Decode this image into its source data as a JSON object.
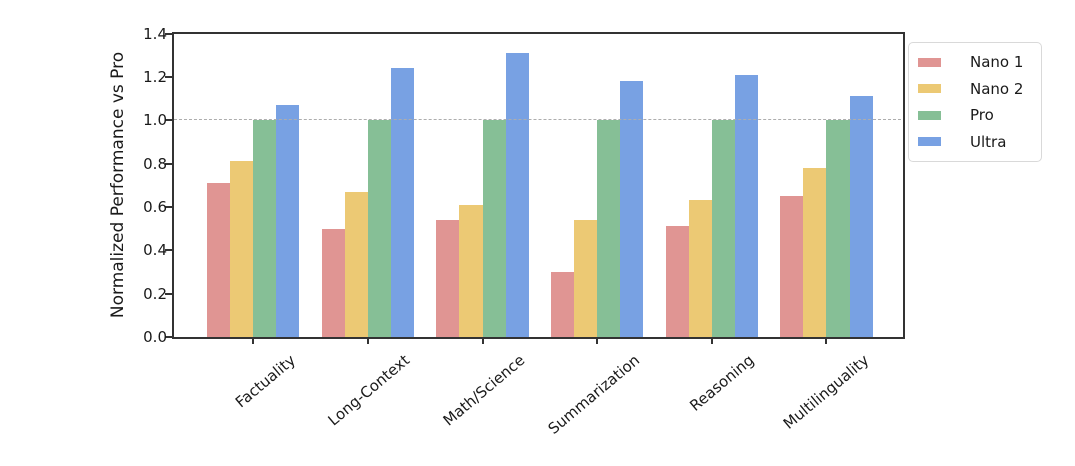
{
  "chart_data": {
    "type": "bar",
    "title": "",
    "xlabel": "",
    "ylabel": "Normalized Performance vs Pro",
    "ylim": [
      0.0,
      1.4
    ],
    "yticks": [
      0.0,
      0.2,
      0.4,
      0.6,
      0.8,
      1.0,
      1.2,
      1.4
    ],
    "ytick_labels": [
      "0.0",
      "0.2",
      "0.4",
      "0.6",
      "0.8",
      "1.0",
      "1.2",
      "1.4"
    ],
    "categories": [
      "Factuality",
      "Long-Context",
      "Math/Science",
      "Summarization",
      "Reasoning",
      "Multilinguality"
    ],
    "series": [
      {
        "name": "Nano 1",
        "color": "#E09593",
        "values": [
          0.71,
          0.5,
          0.54,
          0.3,
          0.51,
          0.65
        ]
      },
      {
        "name": "Nano 2",
        "color": "#ECC974",
        "values": [
          0.81,
          0.67,
          0.61,
          0.54,
          0.63,
          0.78
        ]
      },
      {
        "name": "Pro",
        "color": "#86BF96",
        "values": [
          1.0,
          1.0,
          1.0,
          1.0,
          1.0,
          1.0
        ]
      },
      {
        "name": "Ultra",
        "color": "#78A1E3",
        "values": [
          1.07,
          1.24,
          1.31,
          1.18,
          1.21,
          1.11
        ]
      }
    ],
    "reference_line": {
      "y": 1.0,
      "style": "dashed",
      "color": "#adadad"
    },
    "legend": {
      "position": "outside-upper-right",
      "labels": [
        "Nano 1",
        "Nano 2",
        "Pro",
        "Ultra"
      ]
    },
    "grid": false,
    "x_label_rotation_deg": 40
  }
}
